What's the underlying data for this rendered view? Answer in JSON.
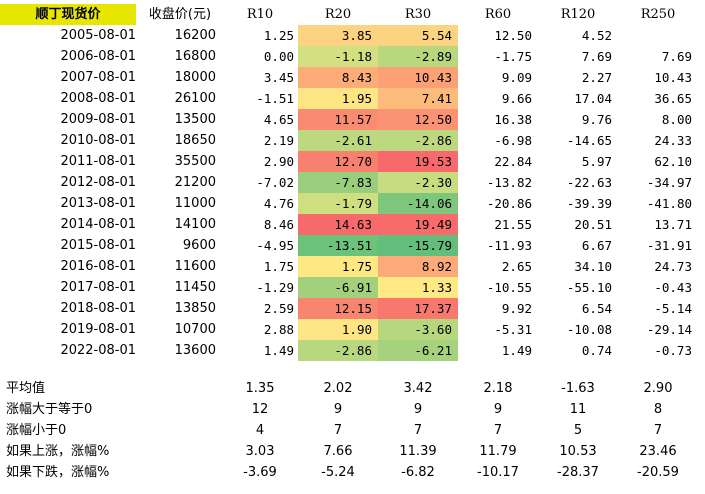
{
  "header": {
    "title": "顺丁现货价",
    "price": "收盘价(元)",
    "cols": [
      "R10",
      "R20",
      "R30",
      "R60",
      "R120",
      "R250"
    ]
  },
  "rows": [
    {
      "date": "2005-08-01",
      "price": "16200",
      "vals": [
        "1.25",
        "3.85",
        "5.54",
        "12.50",
        "4.52",
        ""
      ],
      "bg": [
        "#fcd381",
        "#fcd381"
      ]
    },
    {
      "date": "2006-08-01",
      "price": "16800",
      "vals": [
        "0.00",
        "-1.18",
        "-2.89",
        "-1.75",
        "7.69",
        "7.69"
      ],
      "bg": [
        "#d2e081",
        "#b9d87e"
      ]
    },
    {
      "date": "2007-08-01",
      "price": "18000",
      "vals": [
        "3.45",
        "8.43",
        "10.43",
        "9.09",
        "2.27",
        "10.43"
      ],
      "bg": [
        "#fcac78",
        "#fca176"
      ]
    },
    {
      "date": "2008-08-01",
      "price": "26100",
      "vals": [
        "-1.51",
        "1.95",
        "7.41",
        "9.66",
        "17.04",
        "36.65"
      ],
      "bg": [
        "#fde583",
        "#fcba7b"
      ]
    },
    {
      "date": "2009-08-01",
      "price": "13500",
      "vals": [
        "4.65",
        "11.57",
        "12.50",
        "16.38",
        "9.76",
        "8.00"
      ],
      "bg": [
        "#f98b71",
        "#fa9373"
      ]
    },
    {
      "date": "2010-08-01",
      "price": "18650",
      "vals": [
        "2.19",
        "-2.61",
        "-2.86",
        "-6.98",
        "-14.65",
        "24.33"
      ],
      "bg": [
        "#bcd97f",
        "#bcd97f"
      ]
    },
    {
      "date": "2011-08-01",
      "price": "35500",
      "vals": [
        "2.90",
        "12.70",
        "19.53",
        "22.84",
        "5.97",
        "62.10"
      ],
      "bg": [
        "#f8806f",
        "#f8696b"
      ]
    },
    {
      "date": "2012-08-01",
      "price": "21200",
      "vals": [
        "-7.02",
        "-7.83",
        "-2.30",
        "-13.82",
        "-22.63",
        "-34.97"
      ],
      "bg": [
        "#98ce7c",
        "#c6dc80"
      ]
    },
    {
      "date": "2013-08-01",
      "price": "11000",
      "vals": [
        "4.76",
        "-1.79",
        "-14.06",
        "-20.86",
        "-39.39",
        "-41.80"
      ],
      "bg": [
        "#cddf81",
        "#7ec67c"
      ]
    },
    {
      "date": "2014-08-01",
      "price": "14100",
      "vals": [
        "8.46",
        "14.63",
        "19.49",
        "21.55",
        "20.51",
        "13.71"
      ],
      "bg": [
        "#f8696b",
        "#f86b6b"
      ]
    },
    {
      "date": "2015-08-01",
      "price": "9600",
      "vals": [
        "-4.95",
        "-13.51",
        "-15.79",
        "-11.93",
        "6.67",
        "-31.91"
      ],
      "bg": [
        "#6ac27b",
        "#63be7b"
      ]
    },
    {
      "date": "2016-08-01",
      "price": "11600",
      "vals": [
        "1.75",
        "1.75",
        "8.92",
        "2.65",
        "34.10",
        "24.73"
      ],
      "bg": [
        "#fee884",
        "#fcaa78"
      ]
    },
    {
      "date": "2017-08-01",
      "price": "11450",
      "vals": [
        "-1.29",
        "-6.91",
        "1.33",
        "-10.55",
        "-55.10",
        "-0.43"
      ],
      "bg": [
        "#a2d07d",
        "#ffe984"
      ]
    },
    {
      "date": "2018-08-01",
      "price": "13850",
      "vals": [
        "2.59",
        "12.15",
        "17.37",
        "9.92",
        "6.54",
        "-5.14"
      ],
      "bg": [
        "#f8856f",
        "#f9786e"
      ]
    },
    {
      "date": "2019-08-01",
      "price": "10700",
      "vals": [
        "2.88",
        "1.90",
        "-3.60",
        "-5.31",
        "-10.08",
        "-29.14"
      ],
      "bg": [
        "#fde683",
        "#b6d77e"
      ]
    },
    {
      "date": "2022-08-01",
      "price": "13600",
      "vals": [
        "1.49",
        "-2.86",
        "-6.21",
        "1.49",
        "0.74",
        "-0.73"
      ],
      "bg": [
        "#b8d87f",
        "#a6d17d"
      ]
    }
  ],
  "stats": [
    {
      "label": "平均值",
      "vals": [
        "1.35",
        "2.02",
        "3.42",
        "2.18",
        "-1.63",
        "2.90"
      ]
    },
    {
      "label": "涨幅大于等于0",
      "vals": [
        "12",
        "9",
        "9",
        "9",
        "11",
        "8"
      ]
    },
    {
      "label": "涨幅小于0",
      "vals": [
        "4",
        "7",
        "7",
        "7",
        "5",
        "7"
      ]
    },
    {
      "label": "如果上涨，涨幅%",
      "vals": [
        "3.03",
        "7.66",
        "11.39",
        "11.79",
        "10.53",
        "23.46"
      ]
    },
    {
      "label": "如果下跌，涨幅%",
      "vals": [
        "-3.69",
        "-5.24",
        "-6.82",
        "-10.17",
        "-28.37",
        "-20.59"
      ]
    }
  ]
}
